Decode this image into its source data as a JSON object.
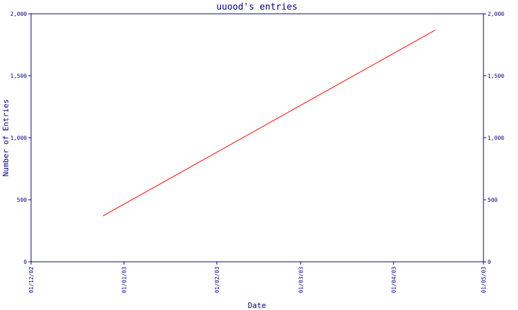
{
  "chart_data": {
    "type": "line",
    "title": "uuood's entries",
    "xlabel": "Date",
    "ylabel": "Number of Entries",
    "x_ticks": [
      "01/12/02",
      "01/01/03",
      "01/02/03",
      "01/03/03",
      "01/04/03",
      "01/05/03"
    ],
    "y_ticks": [
      "0",
      "500",
      "1,000",
      "1,500",
      "2,000"
    ],
    "ylim": [
      0,
      2000
    ],
    "xlim": [
      "2002-12-01",
      "2003-05-01"
    ],
    "grid": false,
    "series": [
      {
        "x": [
          "2002-12-25",
          "2003-04-15"
        ],
        "values": [
          370,
          1870
        ]
      }
    ],
    "colors": {
      "axis": "#000080",
      "line": "#ff0000",
      "text": "#000080"
    }
  }
}
